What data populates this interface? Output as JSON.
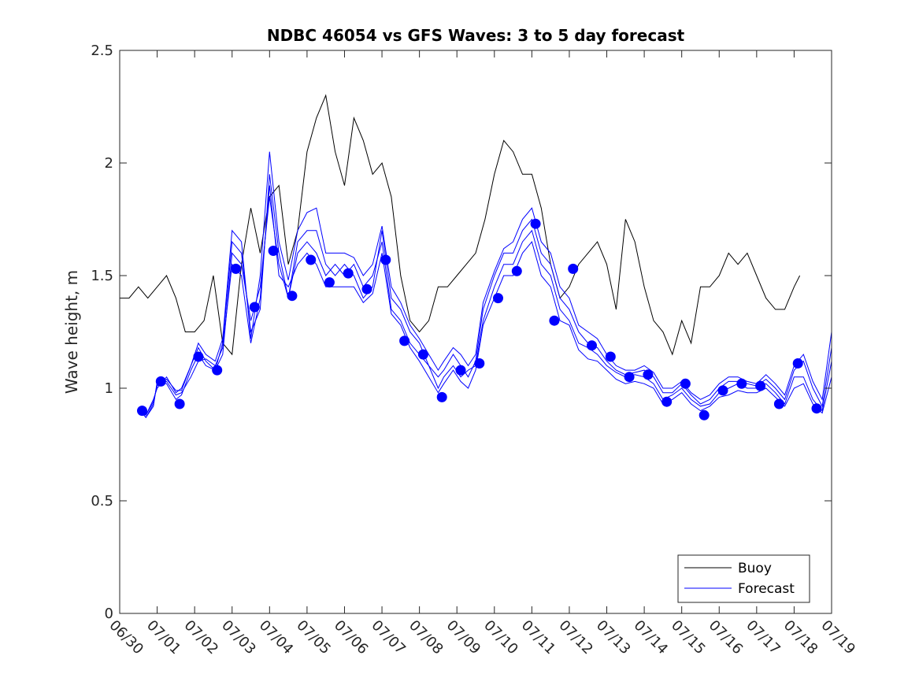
{
  "chart_data": {
    "type": "line",
    "title": "NDBC 46054 vs GFS Waves: 3 to 5 day forecast",
    "xlabel": "",
    "ylabel": "Wave height, m",
    "x_ticks": [
      "06/30",
      "07/01",
      "07/02",
      "07/03",
      "07/04",
      "07/05",
      "07/06",
      "07/07",
      "07/08",
      "07/09",
      "07/10",
      "07/11",
      "07/12",
      "07/13",
      "07/14",
      "07/15",
      "07/16",
      "07/17",
      "07/18",
      "07/19"
    ],
    "xlim": [
      0,
      19
    ],
    "ylim": [
      0,
      2.5
    ],
    "y_ticks": [
      "0",
      "0.5",
      "1",
      "1.5",
      "2",
      "2.5"
    ],
    "grid": false,
    "legend_position": "bottom-right",
    "colors": {
      "buoy": "#000000",
      "forecast": "#0000ff"
    },
    "buoy": {
      "name": "Buoy",
      "x": [
        0.0,
        0.25,
        0.5,
        0.75,
        1.0,
        1.25,
        1.5,
        1.75,
        2.0,
        2.25,
        2.5,
        2.75,
        3.0,
        3.25,
        3.5,
        3.75,
        4.0,
        4.25,
        4.5,
        4.75,
        5.0,
        5.25,
        5.5,
        5.75,
        6.0,
        6.25,
        6.5,
        6.75,
        7.0,
        7.25,
        7.5,
        7.75,
        8.0,
        8.25,
        8.5,
        8.75,
        9.0,
        9.25,
        9.5,
        9.75,
        10.0,
        10.25,
        10.5,
        10.75,
        11.0,
        11.25,
        11.5,
        11.75,
        12.0,
        12.25,
        12.5,
        12.75,
        13.0,
        13.25,
        13.5,
        13.75,
        14.0,
        14.25,
        14.5,
        14.75,
        15.0,
        15.25,
        15.5,
        15.75,
        16.0,
        16.25,
        16.5,
        16.75,
        17.0,
        17.25,
        17.5,
        17.75,
        18.0,
        18.15
      ],
      "values": [
        1.4,
        1.4,
        1.45,
        1.4,
        1.45,
        1.5,
        1.4,
        1.25,
        1.25,
        1.3,
        1.5,
        1.2,
        1.15,
        1.55,
        1.8,
        1.6,
        1.85,
        1.9,
        1.55,
        1.7,
        2.05,
        2.2,
        2.3,
        2.05,
        1.9,
        2.2,
        2.1,
        1.95,
        2.0,
        1.85,
        1.5,
        1.3,
        1.25,
        1.3,
        1.45,
        1.45,
        1.5,
        1.55,
        1.6,
        1.75,
        1.95,
        2.1,
        2.05,
        1.95,
        1.95,
        1.8,
        1.55,
        1.4,
        1.45,
        1.55,
        1.6,
        1.65,
        1.55,
        1.35,
        1.75,
        1.65,
        1.45,
        1.3,
        1.25,
        1.15,
        1.3,
        1.2,
        1.45,
        1.45,
        1.5,
        1.6,
        1.55,
        1.6,
        1.5,
        1.4,
        1.35,
        1.35,
        1.45,
        1.5
      ]
    },
    "forecast": {
      "name": "Forecast",
      "x": [
        0.55,
        0.7,
        0.9,
        1.0,
        1.25,
        1.5,
        1.65,
        1.9,
        2.1,
        2.3,
        2.55,
        2.75,
        3.0,
        3.25,
        3.5,
        3.75,
        4.0,
        4.25,
        4.5,
        4.75,
        5.0,
        5.25,
        5.5,
        5.75,
        6.0,
        6.25,
        6.5,
        6.75,
        7.0,
        7.25,
        7.5,
        7.75,
        8.0,
        8.25,
        8.5,
        8.65,
        8.9,
        9.1,
        9.3,
        9.5,
        9.7,
        10.0,
        10.25,
        10.5,
        10.75,
        11.0,
        11.25,
        11.5,
        11.75,
        12.0,
        12.25,
        12.5,
        12.75,
        13.0,
        13.25,
        13.5,
        13.75,
        14.0,
        14.25,
        14.5,
        14.75,
        15.0,
        15.25,
        15.5,
        15.75,
        16.0,
        16.25,
        16.5,
        16.75,
        17.0,
        17.25,
        17.5,
        17.75,
        18.0,
        18.25,
        18.5,
        18.75,
        19.0
      ],
      "series": [
        {
          "values": [
            0.9,
            0.87,
            0.92,
            1.03,
            1.02,
            0.95,
            0.97,
            1.08,
            1.15,
            1.1,
            1.08,
            1.15,
            1.6,
            1.55,
            1.3,
            1.45,
            1.85,
            1.55,
            1.4,
            1.6,
            1.65,
            1.6,
            1.5,
            1.55,
            1.5,
            1.55,
            1.45,
            1.5,
            1.65,
            1.35,
            1.3,
            1.2,
            1.15,
            1.1,
            1.0,
            1.05,
            1.1,
            1.05,
            1.08,
            1.1,
            1.3,
            1.45,
            1.55,
            1.55,
            1.65,
            1.7,
            1.55,
            1.5,
            1.35,
            1.3,
            1.2,
            1.18,
            1.15,
            1.1,
            1.07,
            1.05,
            1.06,
            1.05,
            1.02,
            0.95,
            0.97,
            1.0,
            0.95,
            0.92,
            0.93,
            0.98,
            1.0,
            1.02,
            1.0,
            1.0,
            1.02,
            0.98,
            0.93,
            1.05,
            1.05,
            0.95,
            0.9,
            1.12
          ]
        },
        {
          "values": [
            0.9,
            0.88,
            0.95,
            1.0,
            1.05,
            0.98,
            1.0,
            1.1,
            1.18,
            1.12,
            1.08,
            1.2,
            1.65,
            1.6,
            1.25,
            1.35,
            1.95,
            1.6,
            1.4,
            1.65,
            1.7,
            1.7,
            1.55,
            1.5,
            1.55,
            1.5,
            1.4,
            1.45,
            1.7,
            1.4,
            1.35,
            1.25,
            1.2,
            1.1,
            1.05,
            1.08,
            1.15,
            1.1,
            1.05,
            1.12,
            1.35,
            1.5,
            1.6,
            1.6,
            1.7,
            1.75,
            1.6,
            1.55,
            1.4,
            1.35,
            1.25,
            1.2,
            1.18,
            1.12,
            1.08,
            1.06,
            1.07,
            1.08,
            1.05,
            0.98,
            0.98,
            1.02,
            0.97,
            0.93,
            0.95,
            1.0,
            1.03,
            1.03,
            1.02,
            1.01,
            1.04,
            1.0,
            0.95,
            1.08,
            1.12,
            1.0,
            0.92,
            1.18
          ]
        },
        {
          "values": [
            0.9,
            0.87,
            0.93,
            1.02,
            1.03,
            0.97,
            0.98,
            1.05,
            1.12,
            1.13,
            1.1,
            1.18,
            1.55,
            1.5,
            1.2,
            1.4,
            1.9,
            1.5,
            1.45,
            1.55,
            1.6,
            1.55,
            1.45,
            1.45,
            1.45,
            1.45,
            1.38,
            1.42,
            1.6,
            1.33,
            1.28,
            1.18,
            1.12,
            1.05,
            0.98,
            1.02,
            1.08,
            1.03,
            1.0,
            1.08,
            1.28,
            1.4,
            1.5,
            1.5,
            1.6,
            1.65,
            1.5,
            1.45,
            1.3,
            1.28,
            1.17,
            1.13,
            1.12,
            1.08,
            1.04,
            1.02,
            1.03,
            1.02,
            1.0,
            0.93,
            0.95,
            0.98,
            0.93,
            0.9,
            0.92,
            0.96,
            0.97,
            0.99,
            0.98,
            0.98,
            1.0,
            0.96,
            0.92,
            1.0,
            1.02,
            0.93,
            0.89,
            1.05
          ]
        },
        {
          "values": [
            0.9,
            0.88,
            0.94,
            1.01,
            1.04,
            0.99,
            0.99,
            1.1,
            1.2,
            1.15,
            1.12,
            1.22,
            1.7,
            1.65,
            1.22,
            1.5,
            2.05,
            1.65,
            1.48,
            1.7,
            1.78,
            1.8,
            1.6,
            1.6,
            1.6,
            1.58,
            1.5,
            1.55,
            1.72,
            1.45,
            1.38,
            1.28,
            1.22,
            1.15,
            1.08,
            1.12,
            1.18,
            1.15,
            1.1,
            1.15,
            1.38,
            1.52,
            1.62,
            1.65,
            1.75,
            1.8,
            1.65,
            1.6,
            1.45,
            1.4,
            1.28,
            1.25,
            1.22,
            1.15,
            1.1,
            1.08,
            1.08,
            1.1,
            1.07,
            1.0,
            1.0,
            1.03,
            0.98,
            0.95,
            0.97,
            1.02,
            1.05,
            1.05,
            1.03,
            1.02,
            1.06,
            1.02,
            0.97,
            1.1,
            1.15,
            1.03,
            0.95,
            1.25
          ]
        }
      ],
      "markers_x": [
        0.6,
        1.1,
        1.6,
        2.1,
        2.6,
        3.1,
        3.6,
        4.1,
        4.6,
        5.1,
        5.6,
        6.1,
        6.6,
        7.1,
        7.6,
        8.1,
        8.6,
        9.1,
        9.6,
        10.1,
        10.6,
        11.1,
        11.6,
        12.1,
        12.6,
        13.1,
        13.6,
        14.1,
        14.6,
        15.1,
        15.6,
        16.1,
        16.6,
        17.1,
        17.6,
        18.1,
        18.6
      ],
      "markers_y": [
        0.9,
        1.03,
        0.93,
        1.14,
        1.08,
        1.53,
        1.36,
        1.61,
        1.41,
        1.57,
        1.47,
        1.51,
        1.44,
        1.57,
        1.21,
        1.15,
        0.96,
        1.08,
        1.11,
        1.4,
        1.52,
        1.73,
        1.3,
        1.53,
        1.19,
        1.14,
        1.05,
        1.06,
        0.94,
        1.02,
        0.88,
        0.99,
        1.02,
        1.01,
        0.93,
        1.11,
        0.91
      ]
    }
  }
}
